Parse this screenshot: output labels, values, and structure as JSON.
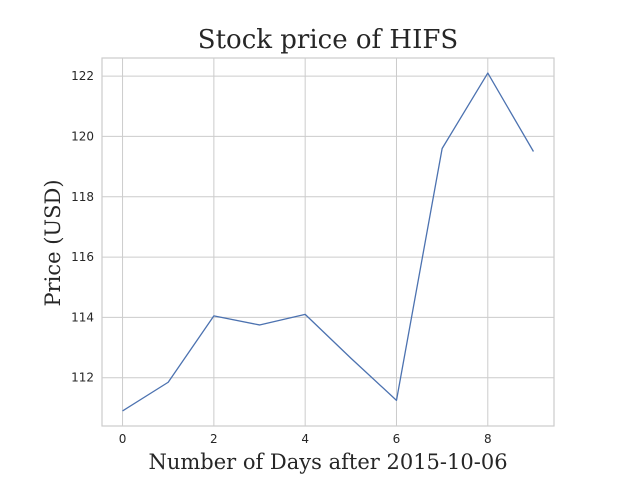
{
  "chart_data": {
    "type": "line",
    "title": "Stock price of HIFS",
    "xlabel": "Number of Days after 2015-10-06",
    "ylabel": "Price (USD)",
    "x": [
      0,
      1,
      2,
      3,
      4,
      5,
      6,
      7,
      8,
      9
    ],
    "series": [
      {
        "values": [
          110.9,
          111.85,
          114.05,
          113.75,
          114.1,
          112.65,
          111.25,
          119.6,
          122.1,
          119.5
        ],
        "color": "#4c72b0"
      }
    ],
    "xlim": [
      -0.45,
      9.45
    ],
    "ylim": [
      110.4,
      122.6
    ],
    "xticks": [
      0,
      2,
      4,
      6,
      8
    ],
    "yticks": [
      112,
      114,
      116,
      118,
      120,
      122
    ],
    "grid": true,
    "legend": false
  }
}
